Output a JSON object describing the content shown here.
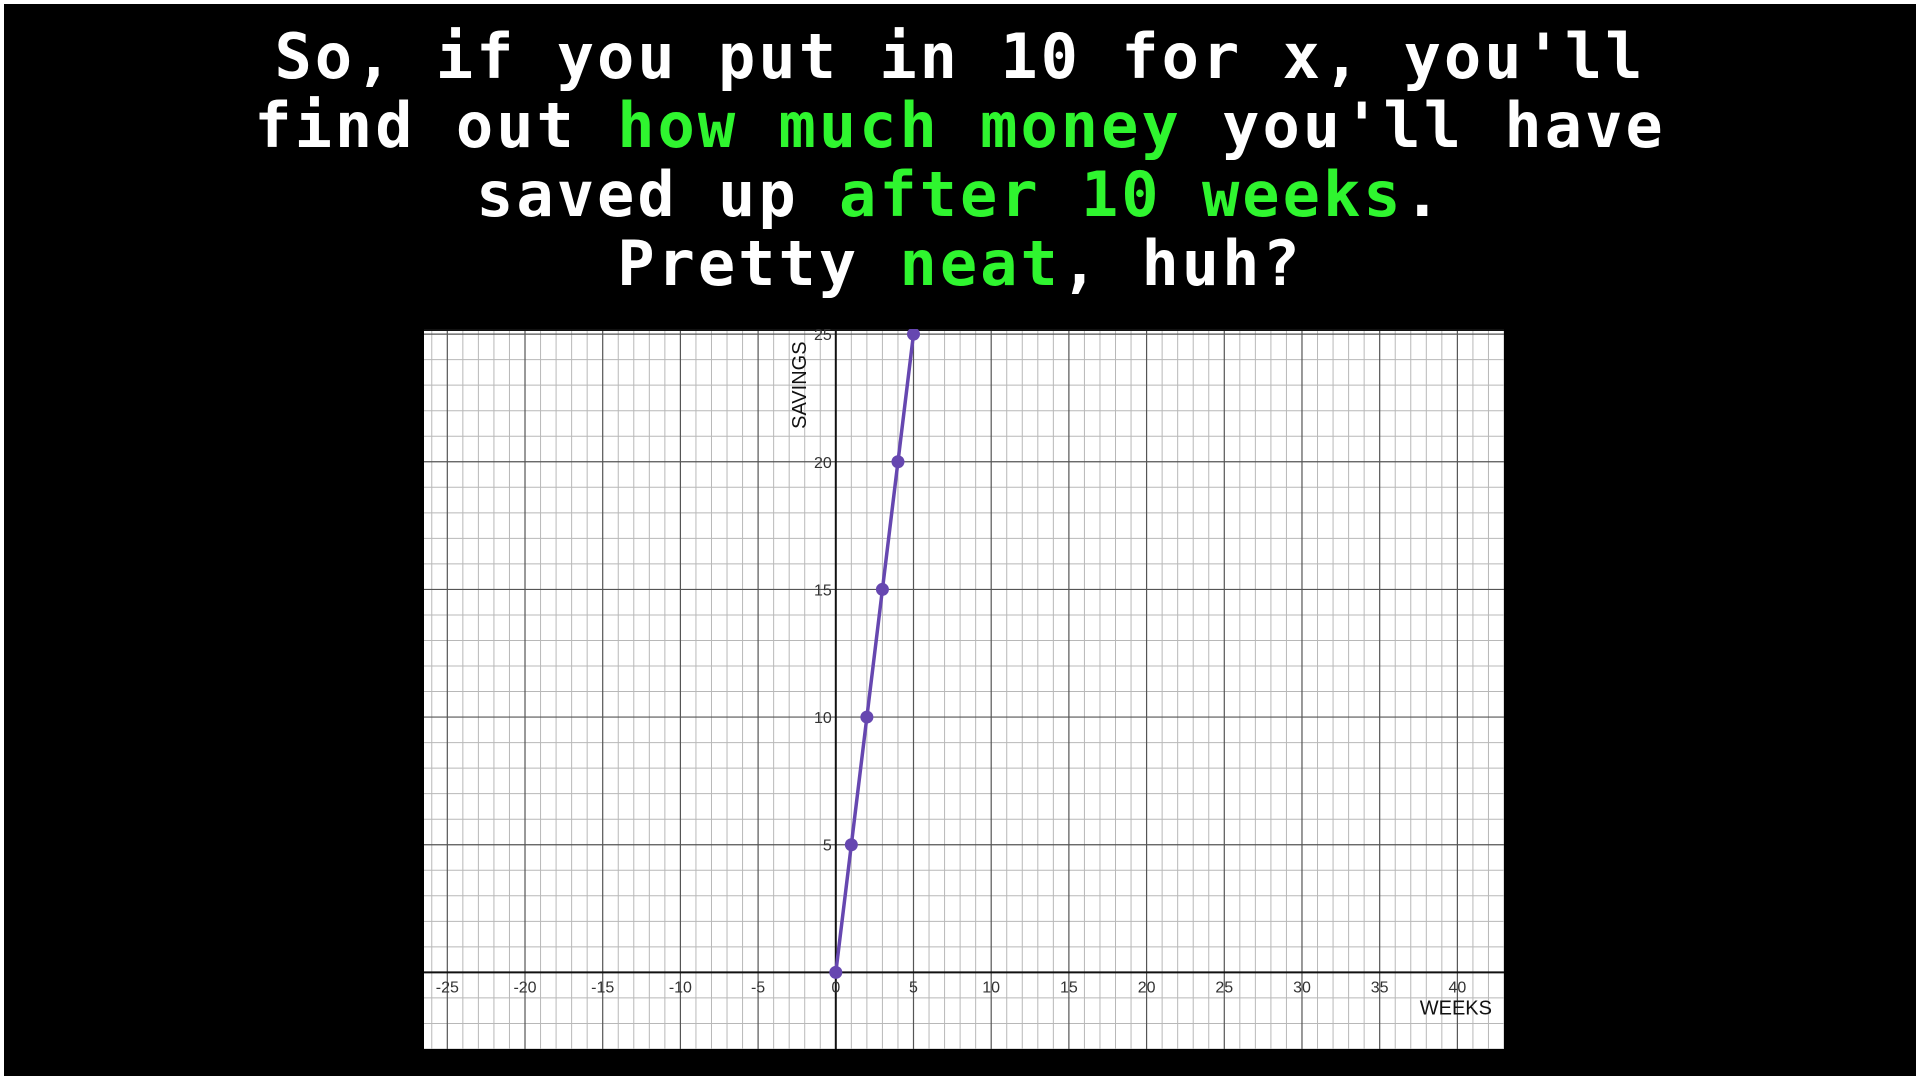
{
  "caption": {
    "line1": "So, if you put in 10 for x, you'll",
    "line2_a": "find out ",
    "line2_b": "how much money",
    "line2_c": " you'll have",
    "line3_a": "saved up ",
    "line3_b": "after 10 weeks",
    "line3_c": ".",
    "line4_a": "Pretty ",
    "line4_b": "neat",
    "line4_c": ", huh?"
  },
  "colors": {
    "background": "#000000",
    "text": "#ffffff",
    "highlight": "#2ff52f",
    "series": "#6647b0"
  },
  "chart_data": {
    "type": "line",
    "title": "",
    "xlabel": "WEEKS",
    "ylabel": "SAVINGS",
    "xlim": [
      -26.5,
      43
    ],
    "ylim": [
      -3,
      25.2
    ],
    "grid": true,
    "x_ticks": [
      -25,
      -20,
      -15,
      -10,
      -5,
      0,
      5,
      10,
      15,
      20,
      25,
      30,
      35,
      40
    ],
    "y_ticks": [
      5,
      10,
      15,
      20,
      25
    ],
    "series": [
      {
        "name": "savings",
        "x": [
          0,
          1,
          2,
          3,
          4,
          5
        ],
        "y": [
          0,
          5,
          10,
          15,
          20,
          25
        ]
      }
    ]
  }
}
